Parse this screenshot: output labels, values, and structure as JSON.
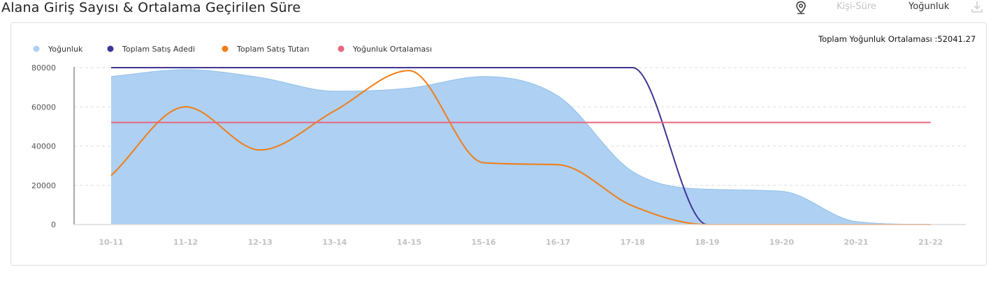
{
  "header": {
    "title": "Alana Giriş Sayısı & Ortalama Geçirilen Süre",
    "tabs": [
      {
        "label": "Kişi-Süre",
        "active": false
      },
      {
        "label": "Yoğunluk",
        "active": true
      }
    ],
    "icons": [
      "location-pin-icon",
      "download-icon"
    ]
  },
  "summary": {
    "average_label": "Toplam Yoğunluk Ortalaması :52041.27"
  },
  "colors": {
    "area": "#aed0f3",
    "area_line": "#8fbfea",
    "adedi": "#3d3593",
    "tutari": "#f07d14",
    "ortalama": "#e8677d",
    "grid": "#dddddd",
    "axis_text": "#555555",
    "x_tick_text": "#c2c2c2"
  },
  "chart_data": {
    "type": "area",
    "title": "Alana Giriş Sayısı & Ortalama Geçirilen Süre",
    "xlabel": "",
    "ylabel": "",
    "ylim": [
      0,
      80000
    ],
    "yticks": [
      0,
      20000,
      40000,
      60000,
      80000
    ],
    "categories": [
      "10-11",
      "11-12",
      "12-13",
      "13-14",
      "14-15",
      "15-16",
      "16-17",
      "17-18",
      "18-19",
      "19-20",
      "20-21",
      "21-22"
    ],
    "grid": true,
    "legend_position": "top-left",
    "series": [
      {
        "name": "Yoğunluk",
        "type": "area",
        "color": "#aed0f3",
        "values": [
          75500,
          79000,
          75000,
          68000,
          69500,
          75500,
          65500,
          27000,
          18000,
          17000,
          1500,
          0
        ]
      },
      {
        "name": "Toplam Satış Adedi",
        "type": "line",
        "color": "#3d3593",
        "values": [
          80000,
          80000,
          80000,
          80000,
          80000,
          80000,
          80000,
          80000,
          0,
          0,
          0,
          0
        ]
      },
      {
        "name": "Toplam Satış Tutarı",
        "type": "line",
        "color": "#f07d14",
        "values": [
          25000,
          60000,
          38000,
          58000,
          78500,
          31500,
          30500,
          9500,
          0,
          0,
          0,
          0
        ]
      },
      {
        "name": "Yoğunluk Ortalaması",
        "type": "line",
        "color": "#e8677d",
        "values": [
          52041.27,
          52041.27,
          52041.27,
          52041.27,
          52041.27,
          52041.27,
          52041.27,
          52041.27,
          52041.27,
          52041.27,
          52041.27,
          52041.27
        ]
      }
    ]
  }
}
